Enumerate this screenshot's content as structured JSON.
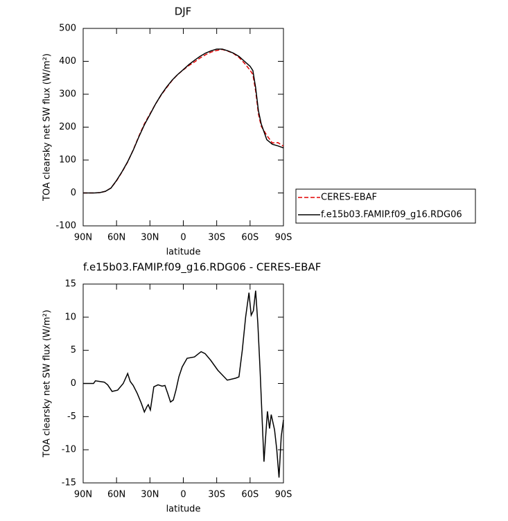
{
  "chart_data": [
    {
      "type": "line",
      "title": "DJF",
      "xlabel": "latitude",
      "ylabel": "TOA clearsky net SW flux (W/m²)",
      "x": [
        90,
        85,
        80,
        75,
        70,
        65,
        60,
        55,
        50,
        45,
        40,
        35,
        30,
        25,
        20,
        15,
        10,
        5,
        0,
        -5,
        -10,
        -15,
        -20,
        -25,
        -30,
        -35,
        -40,
        -45,
        -50,
        -55,
        -60,
        -62.5,
        -65,
        -67.5,
        -70,
        -75,
        -80,
        -85,
        -90
      ],
      "series": [
        {
          "name": "CERES-EBAF",
          "color": "#e00000",
          "dash": true,
          "values": [
            0,
            0,
            0,
            1,
            5,
            15,
            37,
            64,
            94,
            131,
            172,
            210,
            240,
            270,
            297,
            320,
            342,
            360,
            374,
            387,
            398,
            410,
            420,
            428,
            433,
            436,
            431,
            424,
            412,
            394,
            373,
            360,
            310,
            240,
            203,
            175,
            152,
            153,
            142
          ]
        },
        {
          "name": "f.e15b03.FAMIP.f09_g16.RDG06",
          "color": "#000000",
          "dash": false,
          "values": [
            0,
            0,
            0,
            1,
            5,
            15,
            38,
            65,
            95,
            130,
            170,
            207,
            238,
            270,
            298,
            322,
            343,
            360,
            375,
            390,
            403,
            415,
            425,
            432,
            437,
            437,
            432,
            425,
            415,
            400,
            385,
            372,
            320,
            250,
            210,
            162,
            148,
            143,
            137
          ]
        }
      ],
      "xlim": [
        90,
        -90
      ],
      "xticks": [
        {
          "value": 90,
          "label": "90N"
        },
        {
          "value": 60,
          "label": "60N"
        },
        {
          "value": 30,
          "label": "30N"
        },
        0,
        {
          "value": -30,
          "label": "30S"
        },
        {
          "value": -60,
          "label": "60S"
        },
        {
          "value": -90,
          "label": "90S"
        }
      ],
      "ylim": [
        -100,
        500
      ],
      "yticks": [
        -100,
        0,
        100,
        200,
        300,
        400,
        500
      ],
      "legend": "right"
    },
    {
      "type": "line",
      "title": "f.e15b03.FAMIP.f09_g16.RDG06 - CERES-EBAF",
      "xlabel": "latitude",
      "ylabel": "TOA clearsky net SW flux (W/m²)",
      "x": [
        90,
        85,
        80.7,
        79,
        71,
        68,
        64,
        59,
        54,
        50,
        47.7,
        45,
        41.4,
        37.7,
        35,
        32.7,
        31.5,
        29.6,
        26.5,
        22.7,
        19,
        16.5,
        14,
        11.5,
        9,
        6.6,
        4,
        1,
        -3.4,
        -10,
        -16,
        -19.6,
        -24.6,
        -31,
        -39.5,
        -47,
        -50,
        -53,
        -56,
        -59,
        -61,
        -63,
        -65,
        -67,
        -69,
        -71,
        -72.5,
        -74,
        -75.6,
        -77.5,
        -79,
        -82,
        -84,
        -86,
        -88,
        -90
      ],
      "series": [
        {
          "name": "f.e15b03.FAMIP.f09_g16.RDG06 - CERES-EBAF",
          "color": "#000000",
          "dash": false,
          "values": [
            0,
            0,
            0,
            0.4,
            0.2,
            -0.2,
            -1.2,
            -1,
            0,
            1.5,
            0.3,
            -0.3,
            -1.5,
            -3,
            -4.3,
            -3.5,
            -3.2,
            -4,
            -0.5,
            -0.2,
            -0.4,
            -0.3,
            -1.5,
            -2.8,
            -2.5,
            -1,
            1,
            2.5,
            3.8,
            4,
            4.8,
            4.5,
            3.5,
            2,
            0.5,
            0.8,
            1,
            5,
            10,
            13.7,
            10.3,
            11,
            14,
            9,
            2,
            -6,
            -11.8,
            -8,
            -4.2,
            -6.8,
            -4.7,
            -7,
            -10,
            -14.2,
            -8,
            -5.5
          ]
        }
      ],
      "xlim": [
        90,
        -90
      ],
      "xticks": [
        {
          "value": 90,
          "label": "90N"
        },
        {
          "value": 60,
          "label": "60N"
        },
        {
          "value": 30,
          "label": "30N"
        },
        0,
        {
          "value": -30,
          "label": "30S"
        },
        {
          "value": -60,
          "label": "60S"
        },
        {
          "value": -90,
          "label": "90S"
        }
      ],
      "ylim": [
        -15,
        15
      ],
      "yticks": [
        -15,
        -10,
        -5,
        0,
        5,
        10,
        15
      ]
    }
  ]
}
